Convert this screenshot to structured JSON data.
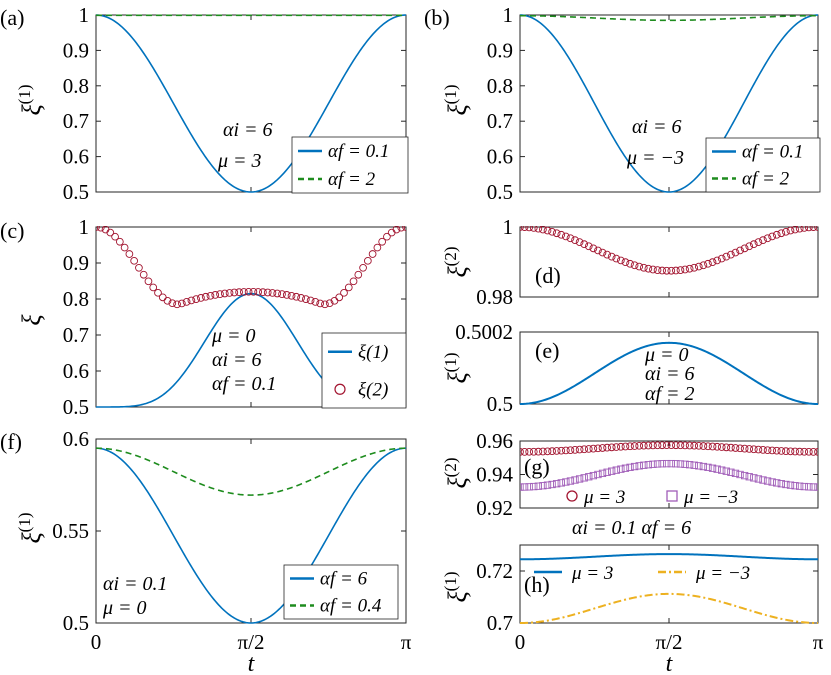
{
  "figure": {
    "x_tick_labels": [
      "0",
      "π/2",
      "π"
    ],
    "x_label": "t"
  },
  "colors": {
    "blue": "#0072BD",
    "green": "#1E8C1E",
    "maroon": "#A2142F",
    "purple": "#A05DB8",
    "gold": "#EDB120"
  },
  "chart_data": [
    {
      "id": "a",
      "type": "line",
      "tag": "(a)",
      "ylabel": "ξ(1)",
      "ylabel_base": "ξ",
      "ylabel_sup": "(1)",
      "x_range": [
        0,
        3.14159
      ],
      "ylim": [
        0.5,
        1.0
      ],
      "yticks": [
        "0.5",
        "0.6",
        "0.7",
        "0.8",
        "0.9",
        "1"
      ],
      "annotations": [
        "αi = 6",
        "μ = 3"
      ],
      "series": [
        {
          "name": "αf = 0.1",
          "style": "solid",
          "color": "#0072BD",
          "model": "cos_bump",
          "start": 1.0,
          "mid": 0.5
        },
        {
          "name": "αf = 2",
          "style": "dashed",
          "color": "#1E8C1E",
          "model": "constant",
          "start": 0.999,
          "mid": 0.999
        }
      ]
    },
    {
      "id": "b",
      "type": "line",
      "tag": "(b)",
      "ylabel": "ξ(1)",
      "ylabel_base": "ξ",
      "ylabel_sup": "(1)",
      "x_range": [
        0,
        3.14159
      ],
      "ylim": [
        0.5,
        1.0
      ],
      "yticks": [
        "0.5",
        "0.6",
        "0.7",
        "0.8",
        "0.9",
        "1"
      ],
      "annotations": [
        "αi = 6",
        "μ = −3"
      ],
      "series": [
        {
          "name": "αf = 0.1",
          "style": "solid",
          "color": "#0072BD",
          "model": "cos_bump",
          "start": 1.0,
          "mid": 0.5
        },
        {
          "name": "αf = 2",
          "style": "dashed",
          "color": "#1E8C1E",
          "model": "cos_bump",
          "start": 0.998,
          "mid": 0.985
        }
      ]
    },
    {
      "id": "c",
      "type": "line",
      "tag": "(c)",
      "ylabel": "ξ",
      "ylabel_base": "ξ",
      "ylabel_sup": "",
      "x_range": [
        0,
        3.14159
      ],
      "ylim": [
        0.5,
        1.0
      ],
      "yticks": [
        "0.5",
        "0.6",
        "0.7",
        "0.8",
        "0.9",
        "1"
      ],
      "annotations": [
        "μ = 0",
        "αi = 6",
        "αf = 0.1"
      ],
      "series": [
        {
          "name": "ξ(1)",
          "style": "solid",
          "color": "#0072BD",
          "model": "sharp_bump",
          "start": 0.5,
          "mid": 0.815
        },
        {
          "name": "ξ(2)",
          "style": "circles",
          "color": "#A2142F",
          "model": "double_dip",
          "start": 1.0,
          "mid": 0.82,
          "min": 0.785
        }
      ]
    },
    {
      "id": "d",
      "type": "scatter",
      "tag": "(d)",
      "ylabel": "ξ(2)",
      "ylabel_base": "ξ",
      "ylabel_sup": "(2)",
      "x_range": [
        0,
        3.14159
      ],
      "ylim": [
        0.98,
        1.0
      ],
      "yticks": [
        "0.98",
        "1"
      ],
      "annotations": [],
      "series": [
        {
          "name": "ξ(2)",
          "style": "circles",
          "color": "#A2142F",
          "model": "cos_bump",
          "start": 1.0,
          "mid": 0.9875
        }
      ]
    },
    {
      "id": "e",
      "type": "line",
      "tag": "(e)",
      "ylabel": "ξ(1)",
      "ylabel_base": "ξ",
      "ylabel_sup": "(1)",
      "x_range": [
        0,
        3.14159
      ],
      "ylim": [
        0.5,
        0.5002
      ],
      "yticks": [
        "0.5",
        "0.5002"
      ],
      "annotations": [
        "μ = 0",
        "αi = 6",
        "αf = 2"
      ],
      "series": [
        {
          "name": "ξ(1)",
          "style": "solid",
          "color": "#0072BD",
          "model": "cos_bump",
          "start": 0.5,
          "mid": 0.50017
        }
      ]
    },
    {
      "id": "f",
      "type": "line",
      "tag": "(f)",
      "ylabel": "ξ(1)",
      "ylabel_base": "ξ",
      "ylabel_sup": "(1)",
      "x_range": [
        0,
        3.14159
      ],
      "ylim": [
        0.5,
        0.6
      ],
      "yticks": [
        "0.5",
        "0.55",
        "0.6"
      ],
      "annotations": [
        "αi = 0.1",
        "μ = 0"
      ],
      "series": [
        {
          "name": "αf = 6",
          "style": "solid",
          "color": "#0072BD",
          "model": "cos_bump",
          "start": 0.595,
          "mid": 0.5
        },
        {
          "name": "αf = 0.4",
          "style": "dashed",
          "color": "#1E8C1E",
          "model": "cos_bump",
          "start": 0.595,
          "mid": 0.5695
        }
      ]
    },
    {
      "id": "g",
      "type": "scatter",
      "tag": "(g)",
      "ylabel": "ξ(2)",
      "ylabel_base": "ξ",
      "ylabel_sup": "(2)",
      "x_range": [
        0,
        3.14159
      ],
      "ylim": [
        0.92,
        0.96
      ],
      "yticks": [
        "0.92",
        "0.94",
        "0.96"
      ],
      "annotations": [
        "αi = 0.1   αf = 6"
      ],
      "series": [
        {
          "name": "μ = 3",
          "style": "circles",
          "color": "#A2142F",
          "model": "cos_bump",
          "start": 0.9535,
          "mid": 0.9575
        },
        {
          "name": "μ = −3",
          "style": "squares",
          "color": "#A05DB8",
          "model": "cos_bump",
          "start": 0.9325,
          "mid": 0.9465
        }
      ]
    },
    {
      "id": "h",
      "type": "line",
      "tag": "(h)",
      "ylabel": "ξ(1)",
      "ylabel_base": "ξ",
      "ylabel_sup": "(1)",
      "x_range": [
        0,
        3.14159
      ],
      "ylim": [
        0.7,
        0.73
      ],
      "yticks": [
        "0.7",
        "0.72"
      ],
      "annotations": [],
      "series": [
        {
          "name": "μ = 3",
          "style": "solid",
          "color": "#0072BD",
          "model": "cos_bump",
          "start": 0.7245,
          "mid": 0.7265
        },
        {
          "name": "μ = −3",
          "style": "dashdot",
          "color": "#EDB120",
          "model": "cos_bump",
          "start": 0.7,
          "mid": 0.7112
        }
      ]
    }
  ]
}
